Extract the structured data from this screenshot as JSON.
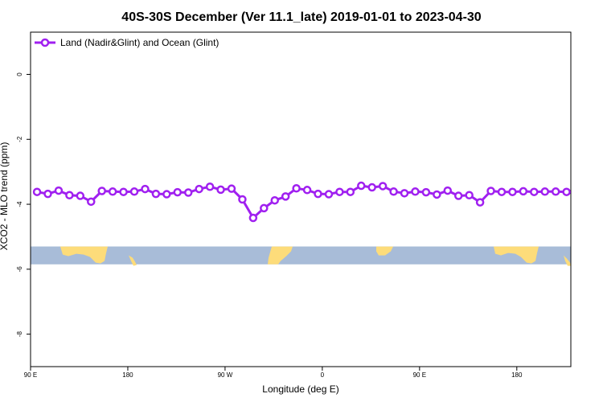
{
  "chart_data": {
    "type": "line",
    "title": "40S-30S December (Ver 11.1_late)   2019-01-01 to 2023-04-30",
    "xlabel": "Longitude (deg E)",
    "ylabel": "XCO2 - MLO trend (ppm)",
    "xlim": [
      90,
      590
    ],
    "ylim": [
      -9.0,
      1.3
    ],
    "x_ticks": [
      {
        "value": 90,
        "label": "90 E"
      },
      {
        "value": 180,
        "label": "180"
      },
      {
        "value": 270,
        "label": "90 W"
      },
      {
        "value": 360,
        "label": "0"
      },
      {
        "value": 450,
        "label": "90 E"
      },
      {
        "value": 540,
        "label": "180"
      }
    ],
    "y_ticks": [
      {
        "value": 0,
        "label": "0"
      },
      {
        "value": -2,
        "label": "-2"
      },
      {
        "value": -4,
        "label": "-4"
      },
      {
        "value": -6,
        "label": "-6"
      },
      {
        "value": -8,
        "label": "-8"
      }
    ],
    "legend": {
      "position": "top-left",
      "entries": [
        "Land (Nadir&Glint) and Ocean (Glint)"
      ]
    },
    "map_band": {
      "y_from": -5.85,
      "y_to": -5.3,
      "ocean_color": "#a8bcd8",
      "land_color": "#fddc7a"
    },
    "series": [
      {
        "name": "Land (Nadir&Glint) and Ocean (Glint)",
        "color": "#a020f0",
        "x": [
          96,
          106,
          116,
          126,
          136,
          146,
          156,
          166,
          176,
          186,
          196,
          206,
          216,
          226,
          236,
          246,
          256,
          266,
          276,
          286,
          296,
          306,
          316,
          326,
          336,
          346,
          356,
          366,
          376,
          386,
          396,
          406,
          416,
          426,
          436,
          446,
          456,
          466,
          476,
          486,
          496,
          506,
          516,
          526,
          536,
          546,
          556,
          566,
          576,
          586
        ],
        "values": [
          -3.62,
          -3.68,
          -3.58,
          -3.72,
          -3.74,
          -3.92,
          -3.59,
          -3.61,
          -3.62,
          -3.61,
          -3.53,
          -3.68,
          -3.69,
          -3.63,
          -3.64,
          -3.53,
          -3.46,
          -3.55,
          -3.52,
          -3.85,
          -4.42,
          -4.12,
          -3.88,
          -3.76,
          -3.51,
          -3.56,
          -3.68,
          -3.69,
          -3.62,
          -3.62,
          -3.43,
          -3.48,
          -3.44,
          -3.61,
          -3.66,
          -3.61,
          -3.63,
          -3.7,
          -3.58,
          -3.74,
          -3.72,
          -3.94,
          -3.59,
          -3.62,
          -3.62,
          -3.6,
          -3.62,
          -3.61,
          -3.61,
          -3.62
        ]
      }
    ]
  }
}
